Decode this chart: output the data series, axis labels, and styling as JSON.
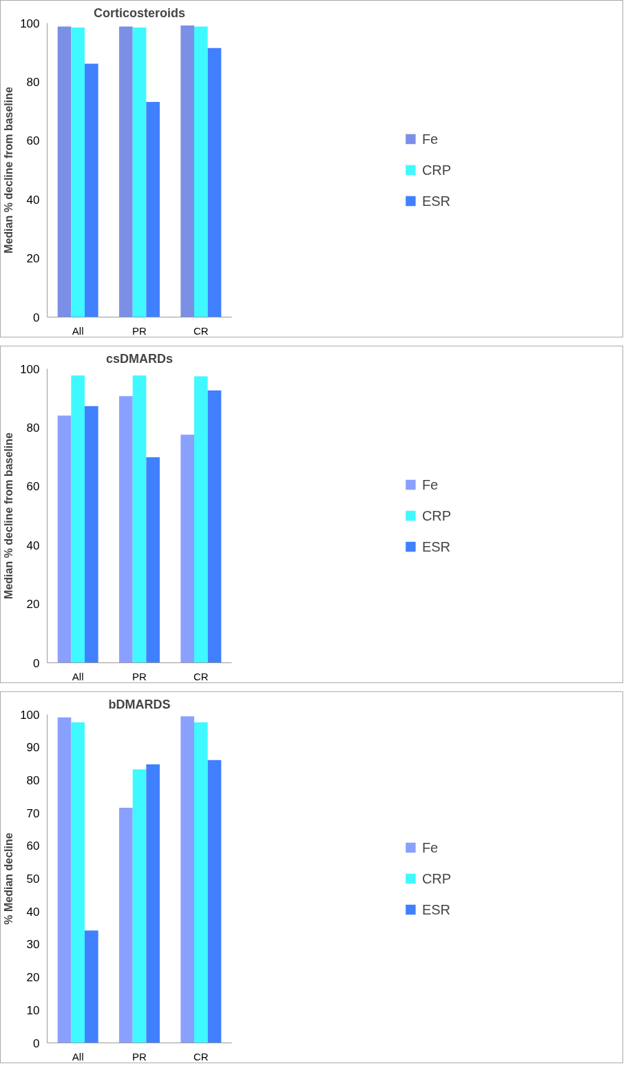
{
  "chart_data": [
    {
      "type": "bar",
      "title": "Corticosteroids",
      "ylabel": "Median % decline from baseline",
      "categories": [
        "All",
        "PR",
        "CR"
      ],
      "ylim": [
        0,
        100
      ],
      "yticks": [
        0,
        20,
        40,
        60,
        80,
        100
      ],
      "grid": false,
      "legend": "right",
      "series": [
        {
          "name": "Fe",
          "color": "#7b8fe6",
          "values": [
            98.8,
            98.8,
            99.2
          ]
        },
        {
          "name": "CRP",
          "color": "#40f8ff",
          "values": [
            98.5,
            98.5,
            98.8
          ]
        },
        {
          "name": "ESR",
          "color": "#4080ff",
          "values": [
            86.2,
            73.2,
            91.5
          ]
        }
      ]
    },
    {
      "type": "bar",
      "title": "csDMARDs",
      "ylabel": "Median % decline from baseline",
      "categories": [
        "All",
        "PR",
        "CR"
      ],
      "ylim": [
        0,
        100
      ],
      "yticks": [
        0,
        20,
        40,
        60,
        80,
        100
      ],
      "grid": false,
      "legend": "right",
      "series": [
        {
          "name": "Fe",
          "color": "#8aa0ff",
          "values": [
            84.1,
            90.7,
            77.6
          ]
        },
        {
          "name": "CRP",
          "color": "#40f8ff",
          "values": [
            97.7,
            97.7,
            97.4
          ]
        },
        {
          "name": "ESR",
          "color": "#4080ff",
          "values": [
            87.3,
            69.9,
            92.6
          ]
        }
      ]
    },
    {
      "type": "bar",
      "title": "bDMARDS",
      "ylabel": "% Median decline",
      "categories": [
        "All",
        "PR",
        "CR"
      ],
      "ylim": [
        0,
        100
      ],
      "yticks": [
        0,
        10,
        20,
        30,
        40,
        50,
        60,
        70,
        80,
        90,
        100
      ],
      "grid": false,
      "legend": "right",
      "series": [
        {
          "name": "Fe",
          "color": "#8aa0ff",
          "values": [
            99.1,
            71.6,
            99.4
          ]
        },
        {
          "name": "CRP",
          "color": "#40f8ff",
          "values": [
            97.6,
            83.3,
            97.6
          ]
        },
        {
          "name": "ESR",
          "color": "#4080ff",
          "values": [
            34.2,
            84.8,
            86.1
          ]
        }
      ]
    }
  ]
}
